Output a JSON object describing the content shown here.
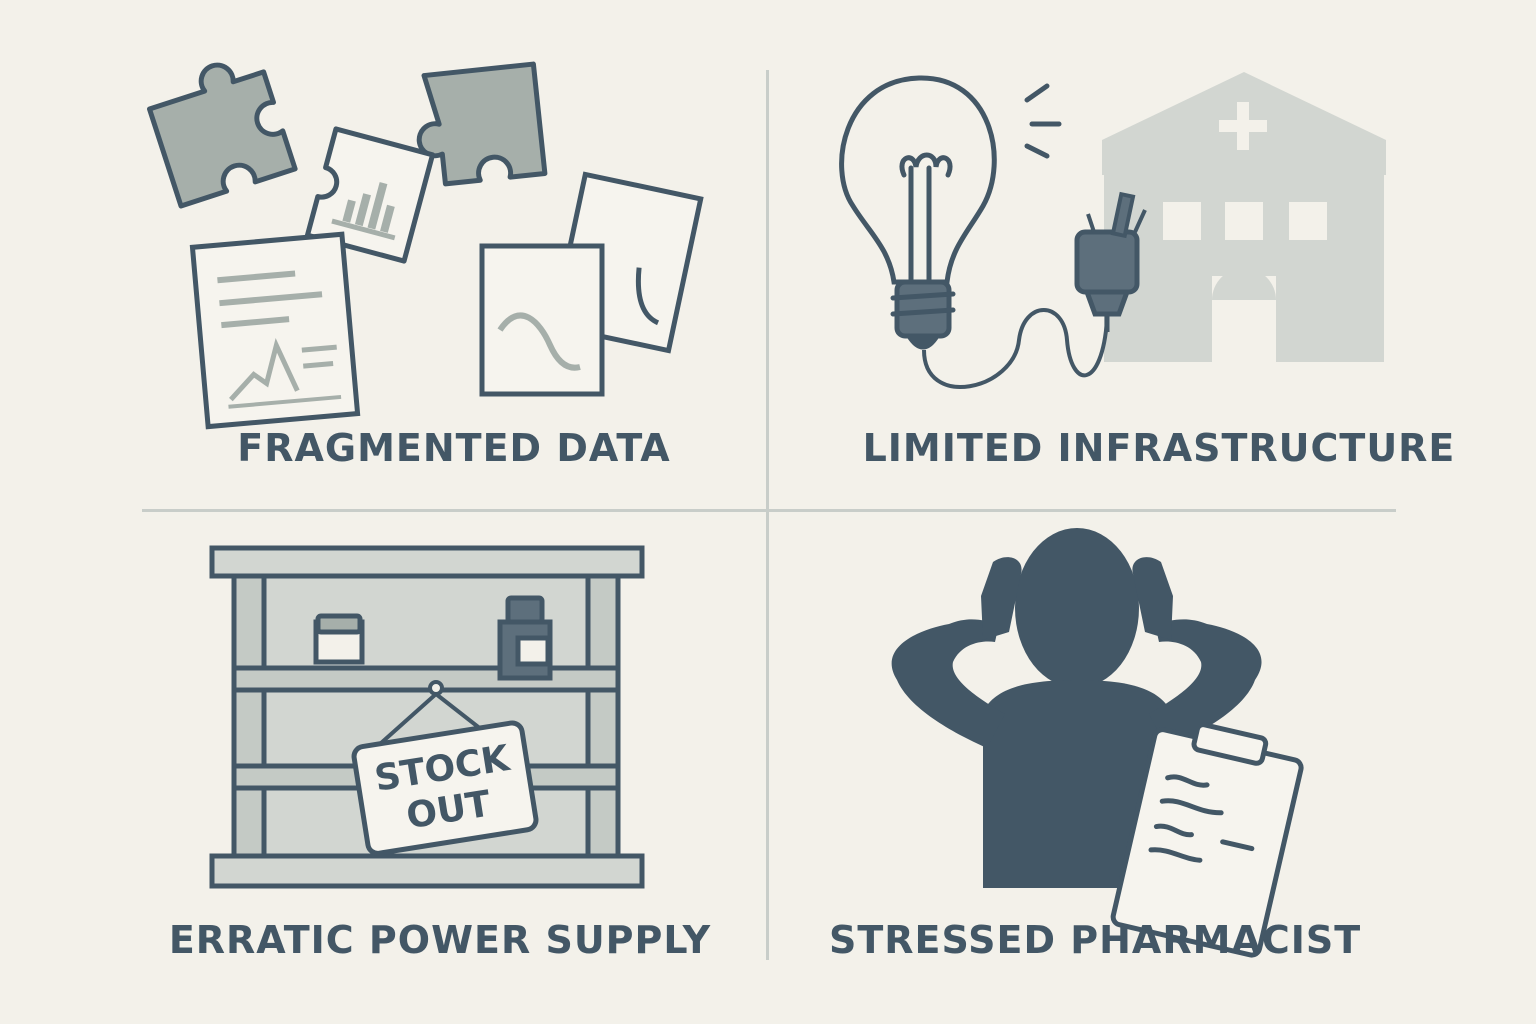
{
  "panels": [
    {
      "id": "fragmented-data",
      "caption": "FRAGMENTED DATA"
    },
    {
      "id": "limited-infrastructure",
      "caption": "LIMITED INFRASTRUCTURE"
    },
    {
      "id": "erratic-power-supply",
      "caption": "ERRATIC POWER SUPPLY",
      "sign_line1": "STOCK",
      "sign_line2": "OUT"
    },
    {
      "id": "stressed-pharmacist",
      "caption": "STRESSED PHARMACIST"
    }
  ],
  "colors": {
    "background": "#f3f1ea",
    "ink": "#435766",
    "fill_gray": "#a6afaa",
    "light_gray": "#d2d6d1",
    "paper": "#f6f4ee",
    "divider": "#c8cdc9"
  }
}
